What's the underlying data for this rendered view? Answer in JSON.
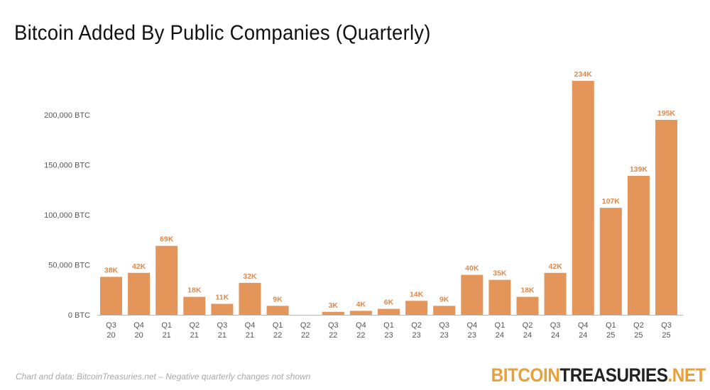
{
  "colors": {
    "bar": "#E3955A",
    "label": "#DD8A4E",
    "axis_text": "#555555",
    "baseline": "#BBBBBB",
    "brand_accent": "#E8A13A"
  },
  "footnote": "Chart and data: BitcoinTreasuries.net  – Negative quarterly changes not shown",
  "brand": {
    "part1": "BITCOIN",
    "part2": "TREASURIES",
    "part3": ".NET"
  },
  "chart_data": {
    "type": "bar",
    "title": "Bitcoin Added By Public Companies (Quarterly)",
    "xlabel": "",
    "ylabel": "",
    "ylim": [
      0,
      240000
    ],
    "yticks": [
      0,
      50000,
      100000,
      150000,
      200000
    ],
    "ytick_labels": [
      "0 BTC",
      "50,000 BTC",
      "100,000 BTC",
      "150,000 BTC",
      "200,000 BTC"
    ],
    "grid": false,
    "categories": [
      [
        "Q3",
        "20"
      ],
      [
        "Q4",
        "20"
      ],
      [
        "Q1",
        "21"
      ],
      [
        "Q2",
        "21"
      ],
      [
        "Q3",
        "21"
      ],
      [
        "Q4",
        "21"
      ],
      [
        "Q1",
        "22"
      ],
      [
        "Q2",
        "22"
      ],
      [
        "Q3",
        "22"
      ],
      [
        "Q4",
        "22"
      ],
      [
        "Q1",
        "23"
      ],
      [
        "Q2",
        "23"
      ],
      [
        "Q3",
        "23"
      ],
      [
        "Q4",
        "23"
      ],
      [
        "Q1",
        "24"
      ],
      [
        "Q2",
        "24"
      ],
      [
        "Q3",
        "24"
      ],
      [
        "Q4",
        "24"
      ],
      [
        "Q1",
        "25"
      ],
      [
        "Q2",
        "25"
      ],
      [
        "Q3",
        "25"
      ]
    ],
    "values": [
      38000,
      42000,
      69000,
      18000,
      11000,
      32000,
      9000,
      0,
      3000,
      4000,
      6000,
      14000,
      9000,
      40000,
      35000,
      18000,
      42000,
      234000,
      107000,
      139000,
      195000
    ],
    "data_labels": [
      "38K",
      "42K",
      "69K",
      "18K",
      "11K",
      "32K",
      "9K",
      "",
      "3K",
      "4K",
      "6K",
      "14K",
      "9K",
      "40K",
      "35K",
      "18K",
      "42K",
      "234K",
      "107K",
      "139K",
      "195K"
    ]
  }
}
